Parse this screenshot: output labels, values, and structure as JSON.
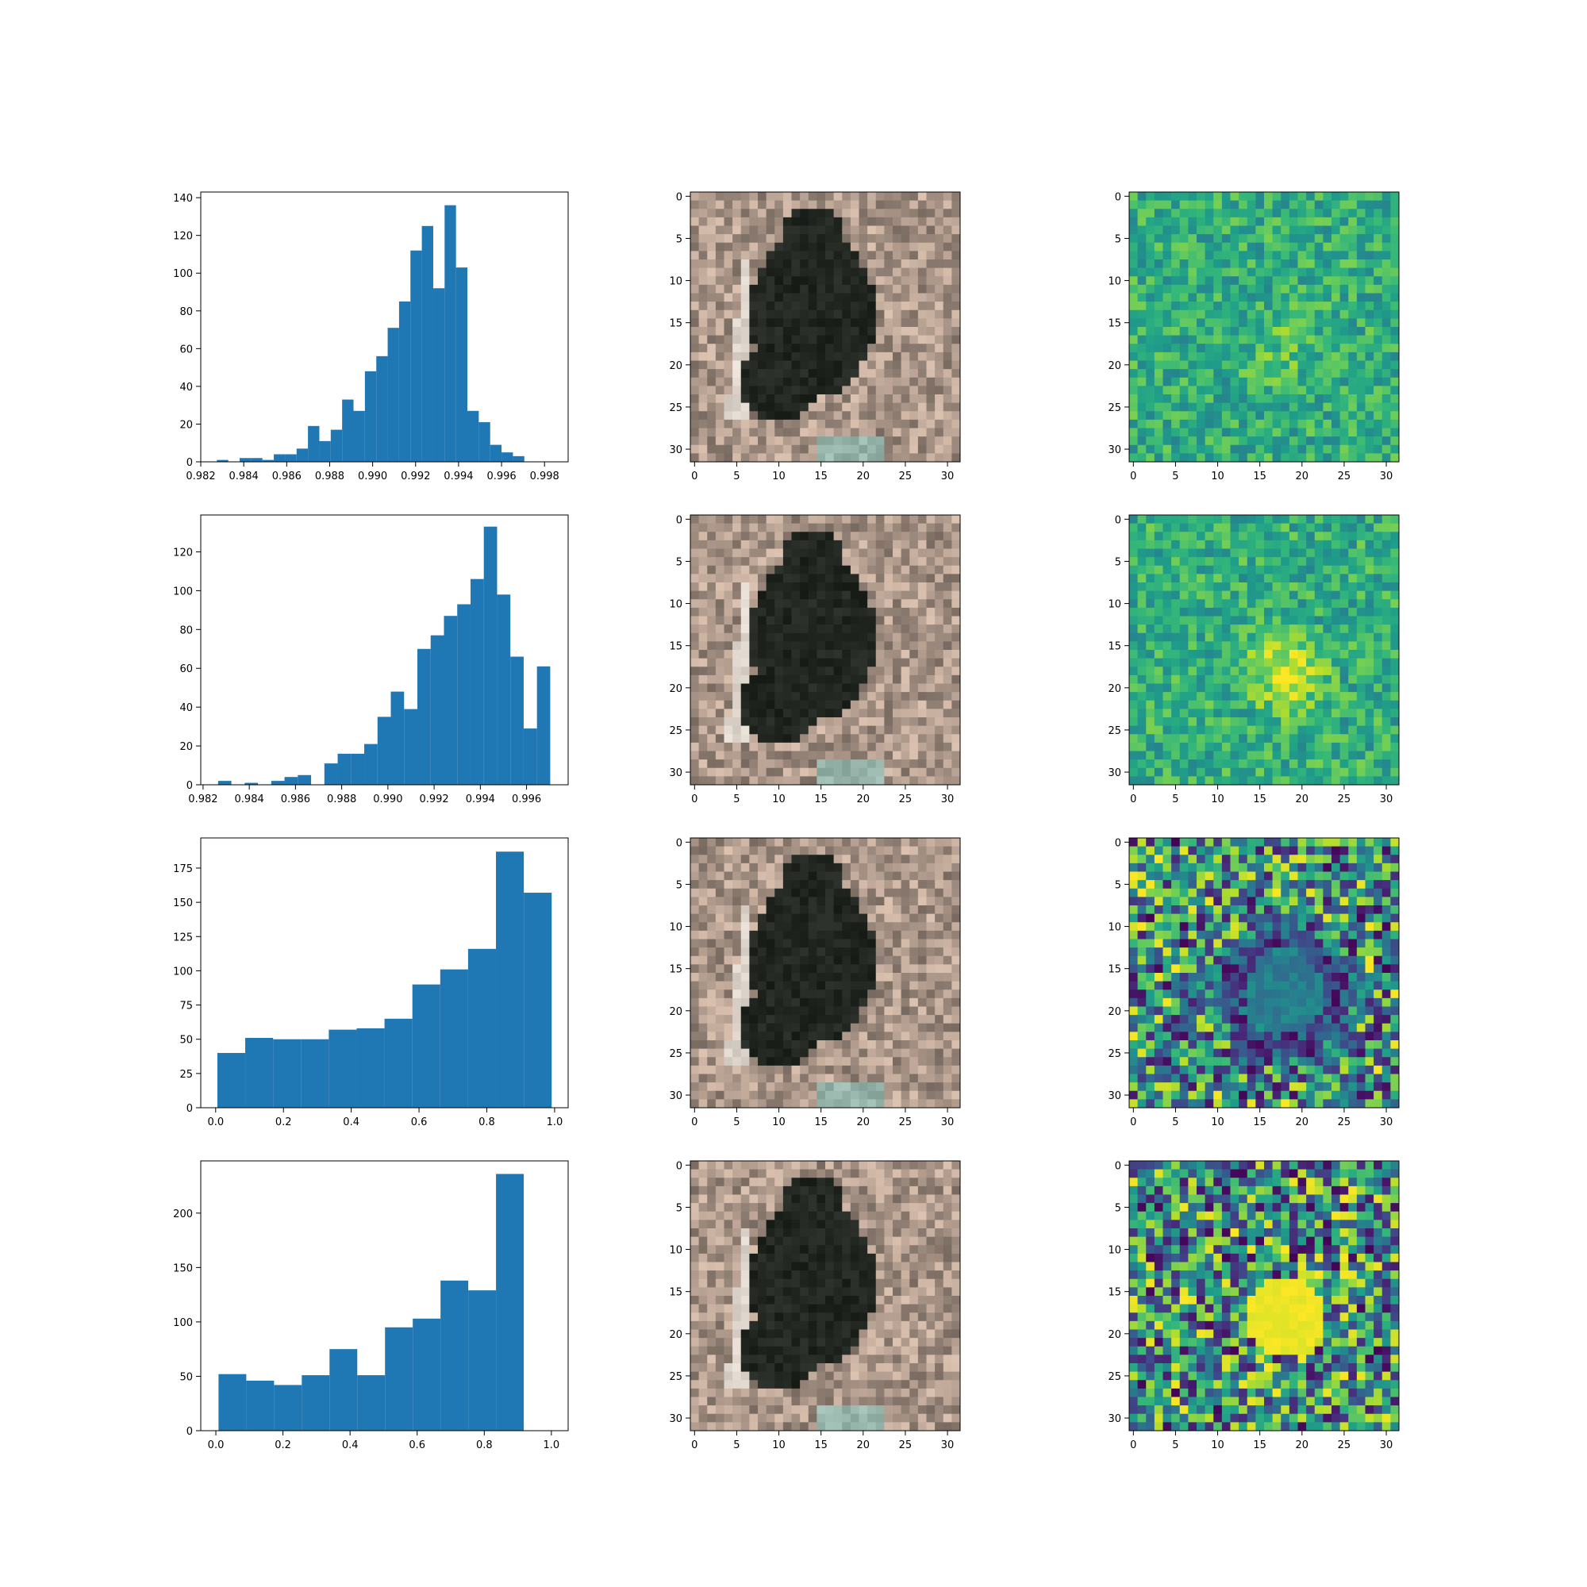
{
  "colors": {
    "bar": "#1f77b4",
    "axis": "#000000",
    "background": "#ffffff"
  },
  "chart_data": [
    {
      "type": "bar",
      "subtype": "histogram",
      "row": 0,
      "bin_start": 0.98275,
      "bin_width": 0.00053,
      "values": [
        1,
        0,
        2,
        2,
        1,
        4,
        4,
        7,
        19,
        11,
        17,
        33,
        27,
        48,
        56,
        71,
        85,
        112,
        125,
        92,
        136,
        103,
        27,
        21,
        9,
        5,
        3
      ],
      "xlim": [
        0.982,
        0.9991
      ],
      "ylim": [
        0,
        143
      ],
      "xticks": [
        0.982,
        0.984,
        0.986,
        0.988,
        0.99,
        0.992,
        0.994,
        0.996,
        0.998
      ],
      "xtick_labels": [
        "0.982",
        "0.984",
        "0.986",
        "0.988",
        "0.990",
        "0.992",
        "0.994",
        "0.996",
        "0.998"
      ],
      "yticks": [
        0,
        20,
        40,
        60,
        80,
        100,
        120,
        140
      ],
      "ytick_labels": [
        "0",
        "20",
        "40",
        "60",
        "80",
        "100",
        "120",
        "140"
      ],
      "title": "",
      "xlabel": "",
      "ylabel": ""
    },
    {
      "type": "image",
      "subtype": "rgb",
      "row": 0,
      "size": [
        32,
        32
      ],
      "xticks": [
        0,
        5,
        10,
        15,
        20,
        25,
        30
      ],
      "yticks": [
        0,
        5,
        10,
        15,
        20,
        25,
        30
      ],
      "xtick_labels": [
        "0",
        "5",
        "10",
        "15",
        "20",
        "25",
        "30"
      ],
      "ytick_labels": [
        "0",
        "5",
        "10",
        "15",
        "20",
        "25",
        "30"
      ]
    },
    {
      "type": "heatmap",
      "colormap": "viridis",
      "row": 0,
      "size": [
        32,
        32
      ],
      "pattern": 0,
      "xticks": [
        0,
        5,
        10,
        15,
        20,
        25,
        30
      ],
      "yticks": [
        0,
        5,
        10,
        15,
        20,
        25,
        30
      ],
      "xtick_labels": [
        "0",
        "5",
        "10",
        "15",
        "20",
        "25",
        "30"
      ],
      "ytick_labels": [
        "0",
        "5",
        "10",
        "15",
        "20",
        "25",
        "30"
      ]
    },
    {
      "type": "bar",
      "subtype": "histogram",
      "row": 1,
      "bin_start": 0.98265,
      "bin_width": 0.000575,
      "values": [
        2,
        0,
        1,
        0,
        2,
        4,
        5,
        0,
        11,
        16,
        16,
        21,
        35,
        48,
        39,
        70,
        77,
        87,
        93,
        106,
        133,
        98,
        66,
        29,
        61
      ],
      "xlim": [
        0.9819,
        0.9978
      ],
      "ylim": [
        0,
        139
      ],
      "xticks": [
        0.982,
        0.984,
        0.986,
        0.988,
        0.99,
        0.992,
        0.994,
        0.996
      ],
      "xtick_labels": [
        "0.982",
        "0.984",
        "0.986",
        "0.988",
        "0.990",
        "0.992",
        "0.994",
        "0.996"
      ],
      "yticks": [
        0,
        20,
        40,
        60,
        80,
        100,
        120
      ],
      "ytick_labels": [
        "0",
        "20",
        "40",
        "60",
        "80",
        "100",
        "120"
      ],
      "title": "",
      "xlabel": "",
      "ylabel": ""
    },
    {
      "type": "image",
      "subtype": "rgb",
      "row": 1,
      "size": [
        32,
        32
      ],
      "xticks": [
        0,
        5,
        10,
        15,
        20,
        25,
        30
      ],
      "yticks": [
        0,
        5,
        10,
        15,
        20,
        25,
        30
      ],
      "xtick_labels": [
        "0",
        "5",
        "10",
        "15",
        "20",
        "25",
        "30"
      ],
      "ytick_labels": [
        "0",
        "5",
        "10",
        "15",
        "20",
        "25",
        "30"
      ]
    },
    {
      "type": "heatmap",
      "colormap": "viridis",
      "row": 1,
      "size": [
        32,
        32
      ],
      "pattern": 1,
      "xticks": [
        0,
        5,
        10,
        15,
        20,
        25,
        30
      ],
      "yticks": [
        0,
        5,
        10,
        15,
        20,
        25,
        30
      ],
      "xtick_labels": [
        "0",
        "5",
        "10",
        "15",
        "20",
        "25",
        "30"
      ],
      "ytick_labels": [
        "0",
        "5",
        "10",
        "15",
        "20",
        "25",
        "30"
      ]
    },
    {
      "type": "bar",
      "subtype": "histogram",
      "row": 2,
      "bin_start": 0.005,
      "bin_width": 0.0822,
      "values": [
        40,
        51,
        50,
        50,
        57,
        58,
        65,
        90,
        101,
        116,
        187,
        157
      ],
      "xlim": [
        -0.044,
        1.04
      ],
      "ylim": [
        0,
        197
      ],
      "xticks": [
        0.0,
        0.2,
        0.4,
        0.6,
        0.8,
        1.0
      ],
      "xtick_labels": [
        "0.0",
        "0.2",
        "0.4",
        "0.6",
        "0.8",
        "1.0"
      ],
      "yticks": [
        0,
        25,
        50,
        75,
        100,
        125,
        150,
        175
      ],
      "ytick_labels": [
        "0",
        "25",
        "50",
        "75",
        "100",
        "125",
        "150",
        "175"
      ],
      "title": "",
      "xlabel": "",
      "ylabel": ""
    },
    {
      "type": "image",
      "subtype": "rgb",
      "row": 2,
      "size": [
        32,
        32
      ],
      "xticks": [
        0,
        5,
        10,
        15,
        20,
        25,
        30
      ],
      "yticks": [
        0,
        5,
        10,
        15,
        20,
        25,
        30
      ],
      "xtick_labels": [
        "0",
        "5",
        "10",
        "15",
        "20",
        "25",
        "30"
      ],
      "ytick_labels": [
        "0",
        "5",
        "10",
        "15",
        "20",
        "25",
        "30"
      ]
    },
    {
      "type": "heatmap",
      "colormap": "viridis",
      "row": 2,
      "size": [
        32,
        32
      ],
      "pattern": 2,
      "xticks": [
        0,
        5,
        10,
        15,
        20,
        25,
        30
      ],
      "yticks": [
        0,
        5,
        10,
        15,
        20,
        25,
        30
      ],
      "xtick_labels": [
        "0",
        "5",
        "10",
        "15",
        "20",
        "25",
        "30"
      ],
      "ytick_labels": [
        "0",
        "5",
        "10",
        "15",
        "20",
        "25",
        "30"
      ]
    },
    {
      "type": "bar",
      "subtype": "histogram",
      "row": 3,
      "bin_start": 0.008,
      "bin_width": 0.0827,
      "values": [
        52,
        46,
        42,
        51,
        75,
        51,
        95,
        103,
        138,
        129,
        236
      ],
      "xlim": [
        -0.045,
        1.05
      ],
      "ylim": [
        0,
        248
      ],
      "xticks": [
        0.0,
        0.2,
        0.4,
        0.6,
        0.8,
        1.0
      ],
      "xtick_labels": [
        "0.0",
        "0.2",
        "0.4",
        "0.6",
        "0.8",
        "1.0"
      ],
      "yticks": [
        0,
        50,
        100,
        150,
        200
      ],
      "ytick_labels": [
        "0",
        "50",
        "100",
        "150",
        "200"
      ],
      "title": "",
      "xlabel": "",
      "ylabel": ""
    },
    {
      "type": "image",
      "subtype": "rgb",
      "row": 3,
      "size": [
        32,
        32
      ],
      "xticks": [
        0,
        5,
        10,
        15,
        20,
        25,
        30
      ],
      "yticks": [
        0,
        5,
        10,
        15,
        20,
        25,
        30
      ],
      "xtick_labels": [
        "0",
        "5",
        "10",
        "15",
        "20",
        "25",
        "30"
      ],
      "ytick_labels": [
        "0",
        "5",
        "10",
        "15",
        "20",
        "25",
        "30"
      ]
    },
    {
      "type": "heatmap",
      "colormap": "viridis",
      "row": 3,
      "size": [
        32,
        32
      ],
      "pattern": 3,
      "xticks": [
        0,
        5,
        10,
        15,
        20,
        25,
        30
      ],
      "yticks": [
        0,
        5,
        10,
        15,
        20,
        25,
        30
      ],
      "xtick_labels": [
        "0",
        "5",
        "10",
        "15",
        "20",
        "25",
        "30"
      ],
      "ytick_labels": [
        "0",
        "5",
        "10",
        "15",
        "20",
        "25",
        "30"
      ]
    }
  ]
}
